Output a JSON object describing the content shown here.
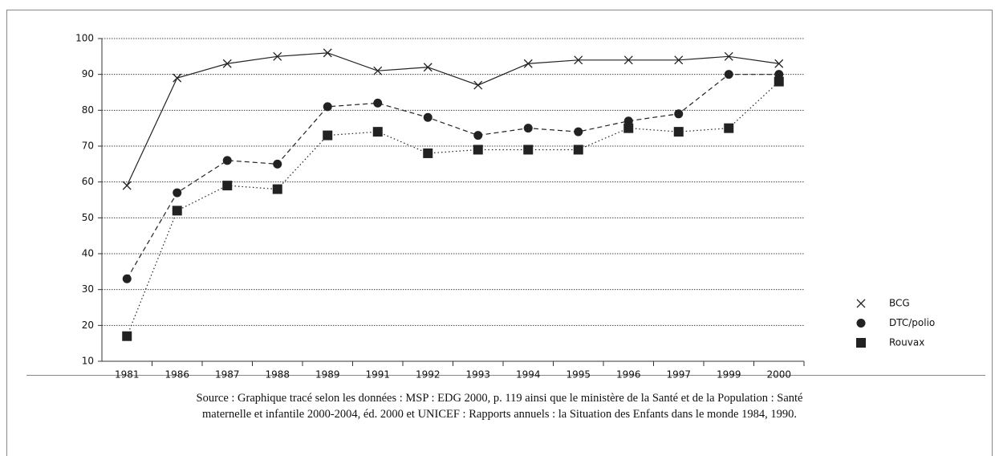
{
  "chart_data": {
    "type": "line",
    "categories": [
      "1981",
      "1986",
      "1987",
      "1988",
      "1989",
      "1991",
      "1992",
      "1993",
      "1994",
      "1995",
      "1996",
      "1997",
      "1999",
      "2000"
    ],
    "series": [
      {
        "name": "BCG",
        "color": "#222222",
        "line_style": "solid",
        "marker": "x",
        "values": [
          59,
          89,
          93,
          95,
          96,
          91,
          92,
          87,
          93,
          94,
          94,
          94,
          95,
          93
        ]
      },
      {
        "name": "DTC/polio",
        "color": "#222222",
        "line_style": "dashed",
        "marker": "circle",
        "values": [
          33,
          57,
          66,
          65,
          81,
          82,
          78,
          73,
          75,
          74,
          77,
          79,
          90,
          90
        ]
      },
      {
        "name": "Rouvax",
        "color": "#222222",
        "line_style": "dotted",
        "marker": "square",
        "values": [
          17,
          52,
          59,
          58,
          73,
          74,
          68,
          69,
          69,
          69,
          75,
          74,
          75,
          88
        ]
      }
    ],
    "ylim": [
      10,
      100
    ],
    "yticks": [
      10,
      20,
      30,
      40,
      50,
      60,
      70,
      80,
      90,
      100
    ],
    "grid": true,
    "legend": "right",
    "source": [
      "Source : Graphique tracé selon les données : MSP : EDG 2000, p. 119 ainsi que le ministère de la Santé et de la Population : Santé",
      "maternelle et infantile 2000-2004, éd. 2000 et UNICEF : Rapports annuels : la Situation des Enfants dans le monde 1984, 1990."
    ]
  }
}
